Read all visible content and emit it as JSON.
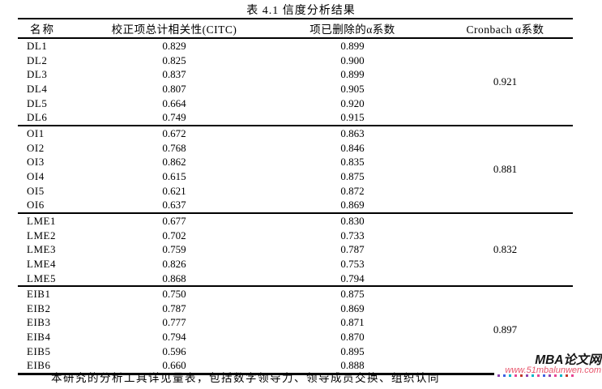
{
  "title": "表 4.1  信度分析结果",
  "table": {
    "columns": [
      "名称",
      "校正项总计相关性(CITC)",
      "项已删除的α系数",
      "Cronbach α系数"
    ],
    "groups": [
      {
        "cronbach": "0.921",
        "rows": [
          [
            "DL1",
            "0.829",
            "0.899"
          ],
          [
            "DL2",
            "0.825",
            "0.900"
          ],
          [
            "DL3",
            "0.837",
            "0.899"
          ],
          [
            "DL4",
            "0.807",
            "0.905"
          ],
          [
            "DL5",
            "0.664",
            "0.920"
          ],
          [
            "DL6",
            "0.749",
            "0.915"
          ]
        ]
      },
      {
        "cronbach": "0.881",
        "rows": [
          [
            "OI1",
            "0.672",
            "0.863"
          ],
          [
            "OI2",
            "0.768",
            "0.846"
          ],
          [
            "OI3",
            "0.862",
            "0.835"
          ],
          [
            "OI4",
            "0.615",
            "0.875"
          ],
          [
            "OI5",
            "0.621",
            "0.872"
          ],
          [
            "OI6",
            "0.637",
            "0.869"
          ]
        ]
      },
      {
        "cronbach": "0.832",
        "rows": [
          [
            "LME1",
            "0.677",
            "0.830"
          ],
          [
            "LME2",
            "0.702",
            "0.733"
          ],
          [
            "LME3",
            "0.759",
            "0.787"
          ],
          [
            "LME4",
            "0.826",
            "0.753"
          ],
          [
            "LME5",
            "0.868",
            "0.794"
          ]
        ]
      },
      {
        "cronbach": "0.897",
        "rows": [
          [
            "EIB1",
            "0.750",
            "0.875"
          ],
          [
            "EIB2",
            "0.787",
            "0.869"
          ],
          [
            "EIB3",
            "0.777",
            "0.871"
          ],
          [
            "EIB4",
            "0.794",
            "0.870"
          ],
          [
            "EIB5",
            "0.596",
            "0.895"
          ],
          [
            "EIB6",
            "0.660",
            "0.888"
          ]
        ]
      }
    ]
  },
  "footer_partial_text": "本研究的分析工具详见量表，包括数字领导力、领导成员交换、组织认同",
  "watermark": {
    "site_name": "MBA论文网",
    "site_url": "www.51mbalunwen.com",
    "name_color": "#161616",
    "url_color": "#e8566c",
    "tick_colors": [
      "#8e44ad",
      "#3b5fe2",
      "#00b5c9",
      "#e84393",
      "#c0392b",
      "#8e44ad",
      "#00b5c9",
      "#e84393",
      "#3b5fe2",
      "#8e44ad",
      "#e84393",
      "#00b5c9",
      "#c0392b",
      "#e84393"
    ]
  }
}
